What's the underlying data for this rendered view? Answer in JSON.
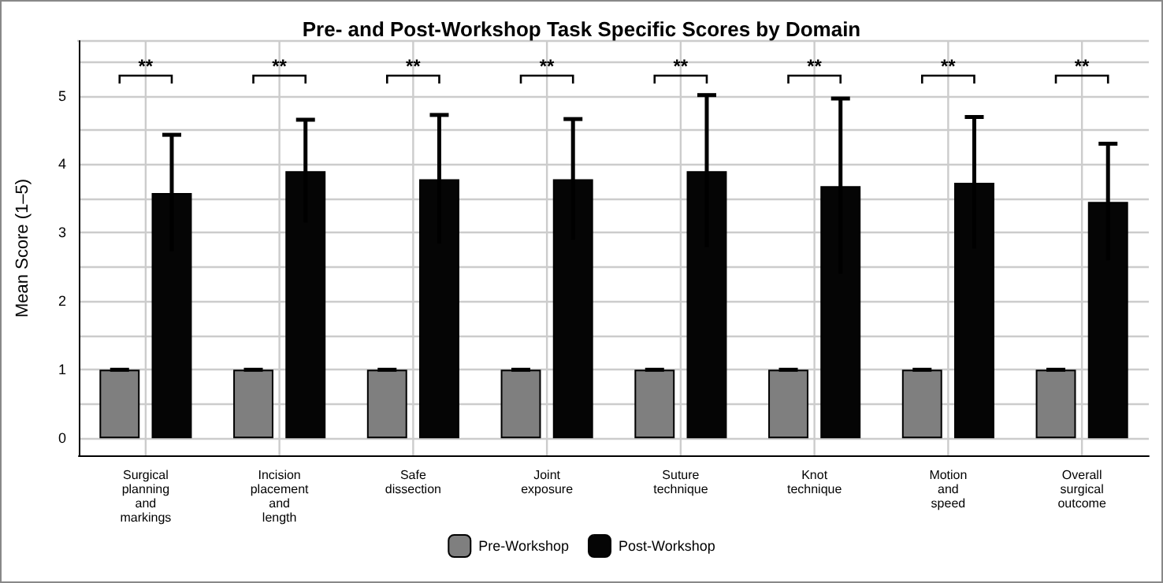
{
  "chart_data": {
    "type": "bar",
    "title": "Pre- and Post-Workshop Task Specific Scores by Domain",
    "ylabel": "Mean Score (1–5)",
    "categories": [
      "Surgical\nplanning\nand\nmarkings",
      "Incision\nplacement\nand\nlength",
      "Safe\ndissection",
      "Joint\nexposure",
      "Suture\ntechnique",
      "Knot\ntechnique",
      "Motion\nand\nspeed",
      "Overall\nsurgical\noutcome"
    ],
    "series": [
      {
        "name": "Pre-Workshop",
        "color": "#7f7f7f",
        "values": [
          1,
          1,
          1,
          1,
          1,
          1,
          1,
          1
        ],
        "errors": [
          0,
          0,
          0,
          0,
          0,
          0,
          0,
          0
        ]
      },
      {
        "name": "Post-Workshop",
        "color": "#050505",
        "values": [
          3.58,
          3.9,
          3.78,
          3.78,
          3.9,
          3.68,
          3.73,
          3.45
        ],
        "errors": [
          0.85,
          0.75,
          0.94,
          0.88,
          1.11,
          1.28,
          0.96,
          0.85
        ]
      }
    ],
    "annotations": [
      "**",
      "**",
      "**",
      "**",
      "**",
      "**",
      "**",
      "**"
    ],
    "ylim": [
      -0.25,
      5.8
    ],
    "yticks": [
      0,
      {
        "value": 0.5,
        "label": null
      },
      1,
      {
        "value": 1.5,
        "label": null
      },
      2,
      {
        "value": 2.5,
        "label": null
      },
      3,
      {
        "value": 3.5,
        "label": null
      },
      4,
      {
        "value": 4.5,
        "label": null
      },
      5,
      {
        "value": 5.5,
        "label": null
      }
    ],
    "grid": true,
    "legend": "bottom"
  }
}
